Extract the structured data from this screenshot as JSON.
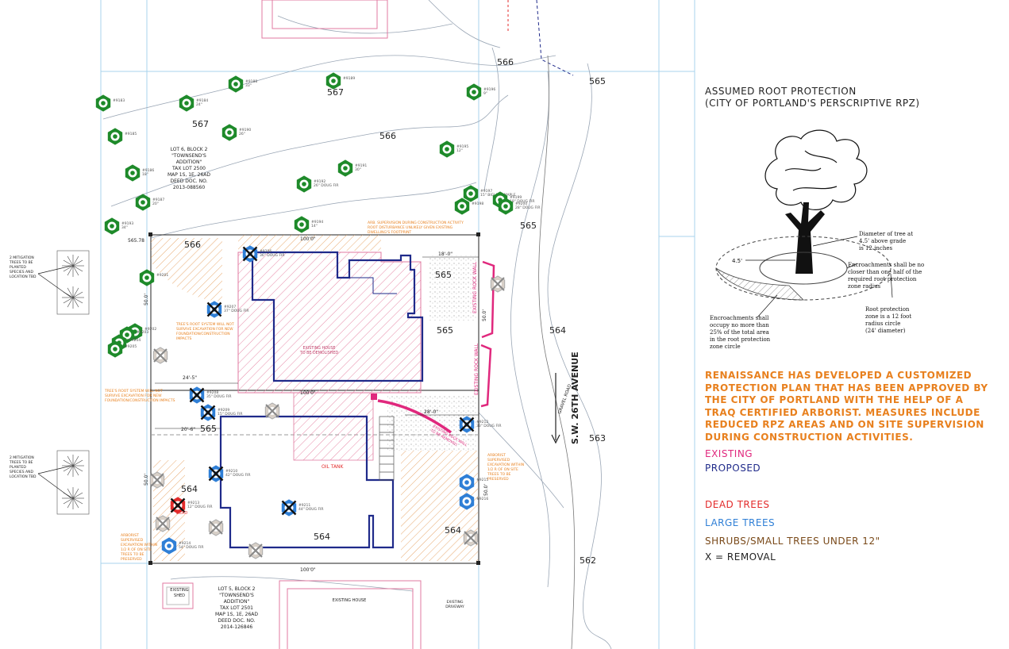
{
  "contours": {
    "c566_top": "566",
    "c567_a": "567",
    "c567_b": "567",
    "c566_mid": "566",
    "c565_top": "565",
    "c565_right": "565",
    "c566_lot": "566",
    "c565_house_a": "565",
    "c565_house_b": "565",
    "c564_street": "564",
    "c565_left": "565",
    "c563": "563",
    "c564_a": "564",
    "c564_b": "564",
    "c564_c": "564",
    "c562": "562"
  },
  "lots": {
    "lot6": [
      "LOT 6, BLOCK 2",
      "\"TOWNSEND'S",
      "ADDITION\"",
      "TAX LOT 2500",
      "MAP 1S, 1E, 26AD",
      "DEED DOC. NO.",
      "2013-088560"
    ],
    "lot5": [
      "LOT 5, BLOCK 2",
      "\"TOWNSEND'S",
      "ADDITION\"",
      "TAX LOT 2501",
      "MAP 1S, 1E, 26AD",
      "DEED DOC. NO.",
      "2014-126846"
    ]
  },
  "dims": {
    "top_width": "100'0\"",
    "mid_width": "100'0\"",
    "bottom_width": "100'0\"",
    "setback_18": "18'-0\"",
    "setback_24": "24'-5\"",
    "setback_20": "20'-6\"",
    "setback_28": "28'-0\"",
    "side_a": "50.0'",
    "side_b": "50.0'",
    "side_c": "50.0'",
    "side_d": "50.0'",
    "elev_tl": "565.78"
  },
  "labels": {
    "existing_house_demo": [
      "EXISTING HOUSE",
      "TO BE DEMOLISHED"
    ],
    "existing_rock_wall_a": "EXISTING ROCK WALL",
    "existing_rock_wall_b": "EXISTING ROCK WALL",
    "oil_tank": "OIL TANK",
    "gravel_road": "GRAVEL ROAD",
    "street_name": "S.W. 26TH AVENUE",
    "existing_shed": [
      "EXISTING",
      "SHED"
    ],
    "existing_house_bottom": "EXISTING HOUSE",
    "existing_driveway": [
      "EXISTING",
      "DRIVEWAY"
    ],
    "mitigation_a": [
      "2 MITIGATION",
      "TREES TO BE",
      "PLANTED",
      "SPECIES AND",
      "LOCATION TBD"
    ],
    "mitigation_b": [
      "2 MITIGATION",
      "TREES TO BE",
      "PLANTED",
      "SPECIES AND",
      "LOCATION TBD"
    ],
    "note_supervision": [
      "ARB. SUPERVISION DURING CONSTRUCTION ACTIVITY",
      "ROOT DISTURBANCE UNLIKELY GIVEN EXISTING",
      "DWELLING'S FOOTPRINT"
    ],
    "note_roots_a": [
      "TREE'S ROOT SYSTEM WILL NOT",
      "SURVIVE EXCAVATION FOR NEW",
      "FOUNDATION/CONSTRUCTION",
      "IMPACTS"
    ],
    "note_roots_b": [
      "TREE'S ROOT SYSTEM WILL NOT",
      "SURVIVE EXCAVATION FOR NEW",
      "FOUNDATION/CONSTRUCTION IMPACTS"
    ],
    "note_arborist_left": [
      "ARBORIST",
      "SUPERVISED",
      "EXCAVATION WITHIN",
      "1/2 R OF ON SITE",
      "TREES TO BE",
      "PRESERVED"
    ],
    "note_arborist_right": [
      "ARBORIST",
      "SUPERVISED",
      "EXCAVATION WITHIN",
      "1/2 R OF ON SITE",
      "TREES TO BE",
      "PRESERVED"
    ],
    "wall_removed": [
      "EXISTING ROCK WALL",
      "TO BE REMOVED"
    ],
    "dead": "DEAD"
  },
  "trees": [
    {
      "id": "#1",
      "tag": "#9183",
      "desc": "",
      "kind": "small"
    },
    {
      "id": "#2",
      "tag": "#9184",
      "desc": "24\"",
      "kind": "small"
    },
    {
      "id": "#3",
      "tag": "#9185",
      "desc": "",
      "kind": "small"
    },
    {
      "id": "#4",
      "tag": "#9186",
      "desc": "18\"",
      "kind": "small"
    },
    {
      "id": "#5",
      "tag": "#9187",
      "desc": "20\"",
      "kind": "small"
    },
    {
      "id": "#6",
      "tag": "#9188",
      "desc": "33\"",
      "kind": "small"
    },
    {
      "id": "#7",
      "tag": "#9189",
      "desc": "",
      "kind": "small"
    },
    {
      "id": "#8",
      "tag": "#9190",
      "desc": "26\"",
      "kind": "small"
    },
    {
      "id": "#9",
      "tag": "#9191",
      "desc": "30\"",
      "kind": "small"
    },
    {
      "id": "#10",
      "tag": "#9192",
      "desc": "26\" DOUG FIR",
      "kind": "small"
    },
    {
      "id": "#11",
      "tag": "#9193",
      "desc": "34\"",
      "kind": "small"
    },
    {
      "id": "#12",
      "tag": "#9194",
      "desc": "14\"",
      "kind": "small"
    },
    {
      "id": "#13",
      "tag": "#9195",
      "desc": "12\"",
      "kind": "small"
    },
    {
      "id": "#14",
      "tag": "#9196",
      "desc": "9\"",
      "kind": "small"
    },
    {
      "id": "#15",
      "tag": "#9197",
      "desc": "15\" BIGLEAF MAPLE",
      "kind": "small"
    },
    {
      "id": "#16",
      "tag": "#9198",
      "desc": "",
      "kind": "small"
    },
    {
      "id": "#17",
      "tag": "#9199",
      "desc": "18\" DOUG FIR",
      "kind": "small"
    },
    {
      "id": "#18",
      "tag": "#9200",
      "desc": "28\" DOUG FIR",
      "kind": "small"
    },
    {
      "id": "#19",
      "tag": "#9201",
      "desc": "",
      "kind": "small"
    },
    {
      "id": "#20",
      "tag": "#9202",
      "desc": "",
      "kind": "small"
    },
    {
      "id": "#21",
      "tag": "#9203",
      "desc": "",
      "kind": "small"
    },
    {
      "id": "#22",
      "tag": "#9204",
      "desc": "",
      "kind": "small"
    },
    {
      "id": "#23",
      "tag": "#9205",
      "desc": "",
      "kind": "small"
    },
    {
      "id": "#24",
      "tag": "#9206",
      "desc": "36\" DOUG FIR",
      "kind": "removal"
    },
    {
      "id": "#25",
      "tag": "#9207",
      "desc": "37\" DOUG FIR",
      "kind": "removal"
    },
    {
      "id": "#26",
      "tag": "#9208",
      "desc": "35\" DOUG FIR",
      "kind": "removal"
    },
    {
      "id": "#27",
      "tag": "#9209",
      "desc": "15\" DOUG FIR",
      "kind": "removal"
    },
    {
      "id": "#28",
      "tag": "#9210",
      "desc": "42\" DOUG FIR",
      "kind": "removal"
    },
    {
      "id": "#29",
      "tag": "#9211",
      "desc": "44\" DOUG FIR",
      "kind": "removal"
    },
    {
      "id": "#30",
      "tag": "#9212",
      "desc": "33\" DOUG FIR",
      "kind": "removal"
    },
    {
      "id": "#31",
      "tag": "#9213",
      "desc": "12\" DOUG FIR",
      "kind": "dead"
    },
    {
      "id": "#32",
      "tag": "#9214",
      "desc": "54\" DOUG FIR",
      "kind": "large"
    },
    {
      "id": "#33",
      "tag": "#9215",
      "desc": "",
      "kind": "large"
    },
    {
      "id": "#34",
      "tag": "#9216",
      "desc": "",
      "kind": "large"
    }
  ],
  "legend": {
    "rpz_title_1": "ASSUMED ROOT PROTECTION",
    "rpz_title_2": "(CITY OF PORTLAND'S PERSCRIPTIVE RPZ)",
    "diagram": {
      "dia_label": [
        "Diameter of tree at",
        "4.5' above grade",
        "is 12 inches"
      ],
      "enc_label": [
        "Encroachments shall be no",
        "closer than one half of the",
        "required root protection",
        "zone radius"
      ],
      "rpz_label": [
        "Root protection",
        "zone is a 12 foot",
        "radius circle",
        "(24' diameter)"
      ],
      "occ_label": [
        "Encroachments shall",
        "occupy no more than",
        "25% of the total area",
        "in the root protection",
        "zone circle"
      ],
      "height": "4.5'"
    },
    "note": "RENAISSANCE HAS DEVELOPED A CUSTOMIZED PROTECTION PLAN THAT HAS BEEN APPROVED BY THE CITY OF PORTLAND WITH THE HELP OF A TRAQ CERTIFIED ARBORIST. MEASURES INCLUDE REDUCED RPZ AREAS AND ON SITE SUPERVISION DURING CONSTRUCTION ACTIVITIES.",
    "existing": "EXISTING",
    "proposed": "PROPOSED",
    "dead_trees": "DEAD TREES",
    "large_trees": "LARGE TREES",
    "shrubs": "SHRUBS/SMALL TREES UNDER 12\"",
    "removal": "X = REMOVAL"
  },
  "colors": {
    "existing": "#e0287d",
    "proposed": "#1f2a8a",
    "dead": "#e32b2b",
    "large": "#2f7fd6",
    "small": "#1e8a2a",
    "note": "#e8801e",
    "shrub_text": "#7a4a1a"
  }
}
